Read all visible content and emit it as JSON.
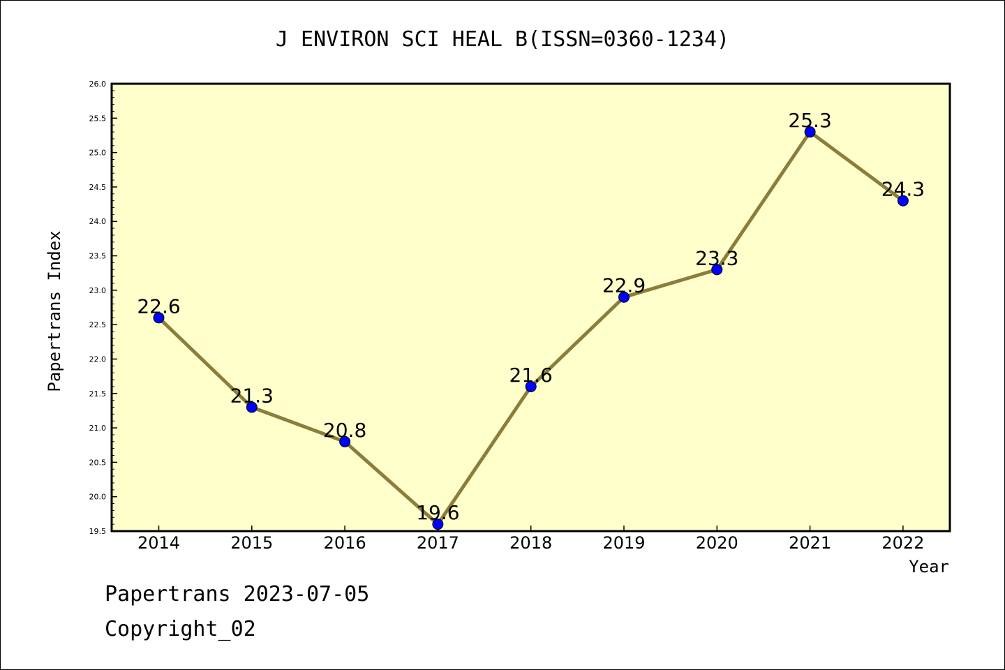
{
  "chart_data": {
    "type": "line",
    "title": "J ENVIRON SCI HEAL B(ISSN=0360-1234)",
    "xlabel": "Year",
    "ylabel": "Papertrans Index",
    "categories": [
      "2014",
      "2015",
      "2016",
      "2017",
      "2018",
      "2019",
      "2020",
      "2021",
      "2022"
    ],
    "series": [
      {
        "values": [
          22.6,
          21.3,
          20.8,
          19.6,
          21.6,
          22.9,
          23.3,
          25.3,
          24.3
        ]
      }
    ],
    "data_labels": [
      "22.6",
      "21.3",
      "20.8",
      "19.6",
      "21.6",
      "22.9",
      "23.3",
      "25.3",
      "24.3"
    ],
    "ylim": [
      19.5,
      26.0
    ],
    "yticks": [
      "19.5",
      "20.0",
      "20.5",
      "21.0",
      "21.5",
      "22.0",
      "22.5",
      "23.0",
      "23.5",
      "24.0",
      "24.5",
      "25.0",
      "25.5",
      "26.0"
    ],
    "grid": false,
    "colors": {
      "plot_background": "#ffffcc",
      "line": "#8b7d3a",
      "marker": "#0000ff"
    }
  },
  "footer": {
    "line1": "Papertrans 2023-07-05",
    "line2": "Copyright_02"
  }
}
